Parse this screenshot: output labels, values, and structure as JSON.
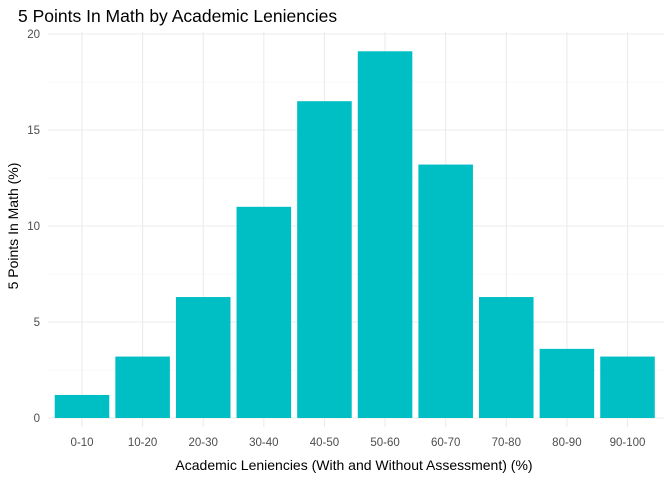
{
  "chart_data": {
    "type": "bar",
    "title": "5 Points In Math by Academic Leniencies",
    "xlabel": "Academic Leniencies (With and Without Assessment) (%)",
    "ylabel": "5 Points In Math (%)",
    "categories": [
      "0-10",
      "10-20",
      "20-30",
      "30-40",
      "40-50",
      "50-60",
      "60-70",
      "70-80",
      "80-90",
      "90-100"
    ],
    "values": [
      1.2,
      3.2,
      6.3,
      11.0,
      16.5,
      19.1,
      13.2,
      6.3,
      3.6,
      3.2
    ],
    "ylim": [
      0,
      20
    ],
    "yticks": [
      0,
      5,
      10,
      15,
      20
    ],
    "grid": true,
    "legend": "none",
    "colors": {
      "bar": "#00BFC4"
    }
  }
}
